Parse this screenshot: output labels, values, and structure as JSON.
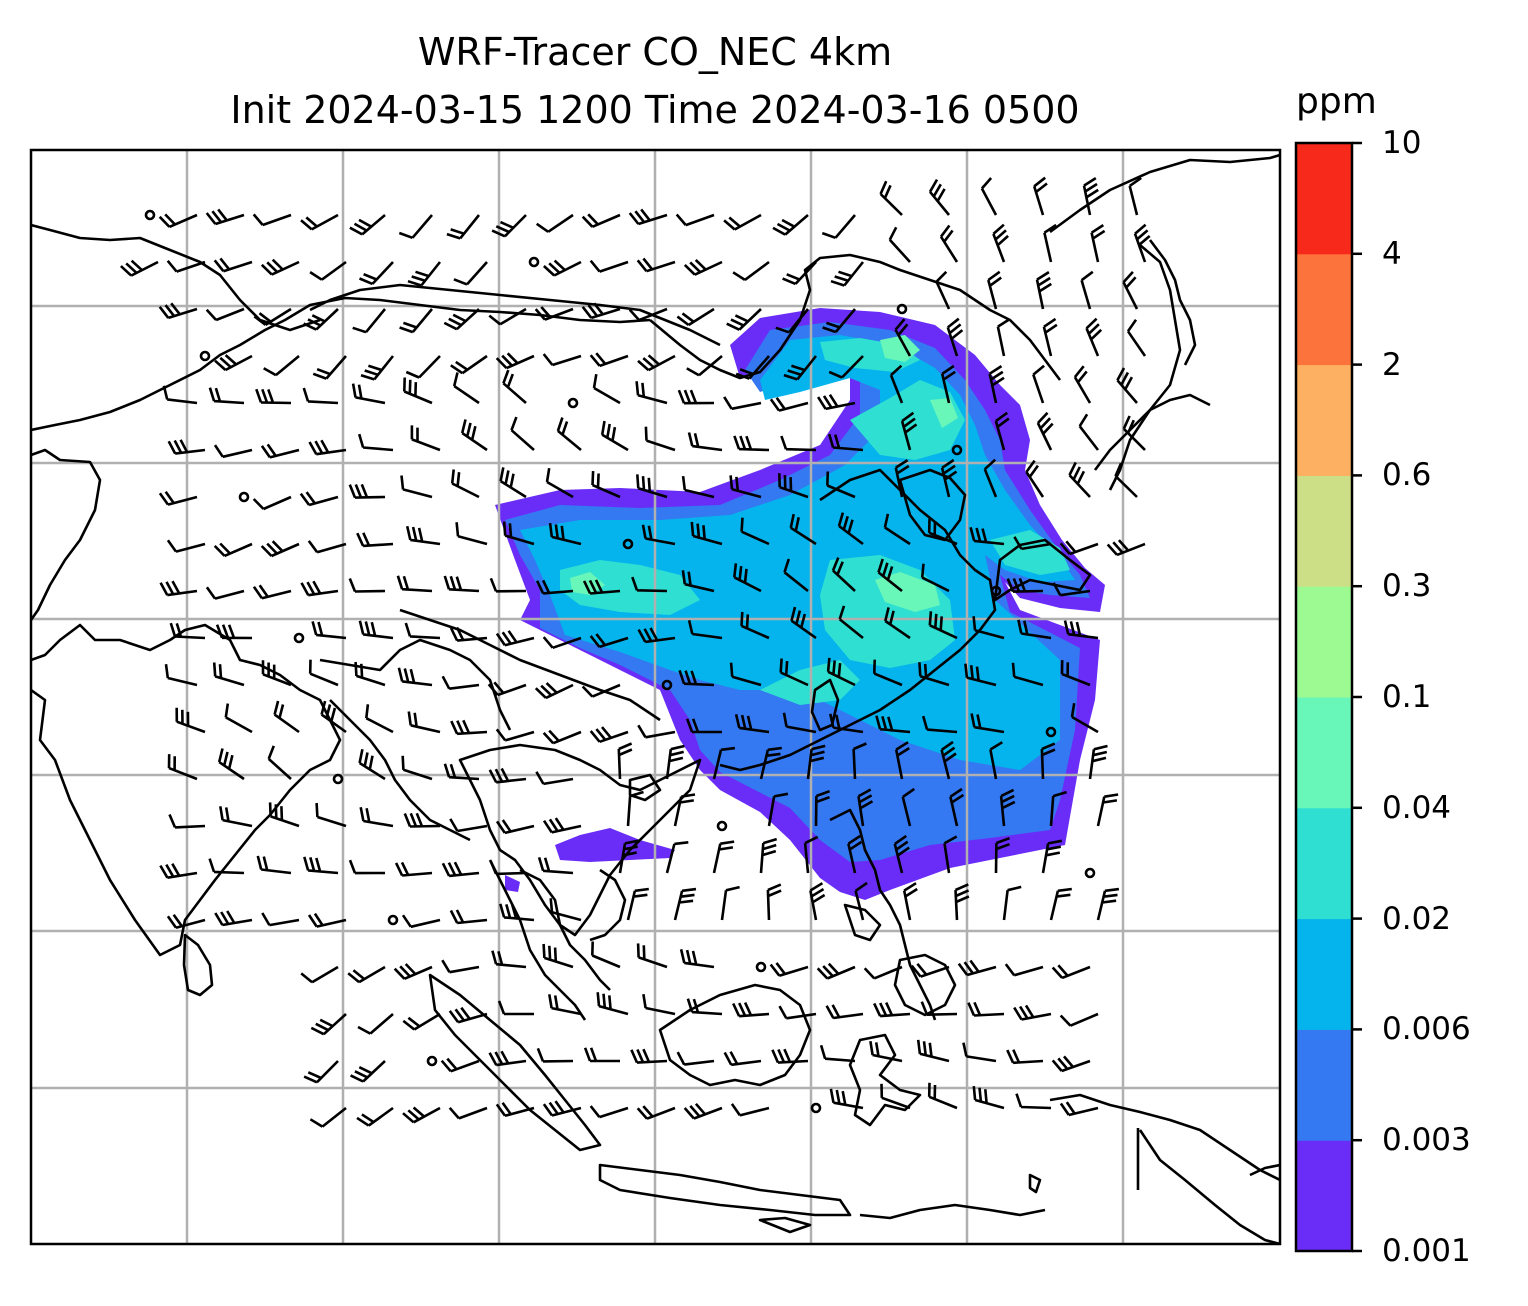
{
  "title": {
    "line1": "WRF-Tracer CO_NEC 4km",
    "line2": "Init 2024-03-15 1200 Time 2024-03-16 0500"
  },
  "colorbar": {
    "unit": "ppm",
    "levels": [
      "0.001",
      "0.003",
      "0.006",
      "0.02",
      "0.04",
      "0.1",
      "0.3",
      "0.6",
      "2",
      "4",
      "10"
    ],
    "colors": [
      "#6a2df7",
      "#3478f2",
      "#05b4ec",
      "#2fe0d2",
      "#69f6b9",
      "#9dfa92",
      "#cddf86",
      "#fdb061",
      "#fd733c",
      "#f7291a"
    ]
  },
  "map": {
    "background": "#ffffff",
    "coastline_color": "#000000",
    "gridline_color": "#b0b0b0",
    "barb_color": "#000000",
    "field": "CO_NEC tracer concentration",
    "overlay": "wind barbs"
  }
}
